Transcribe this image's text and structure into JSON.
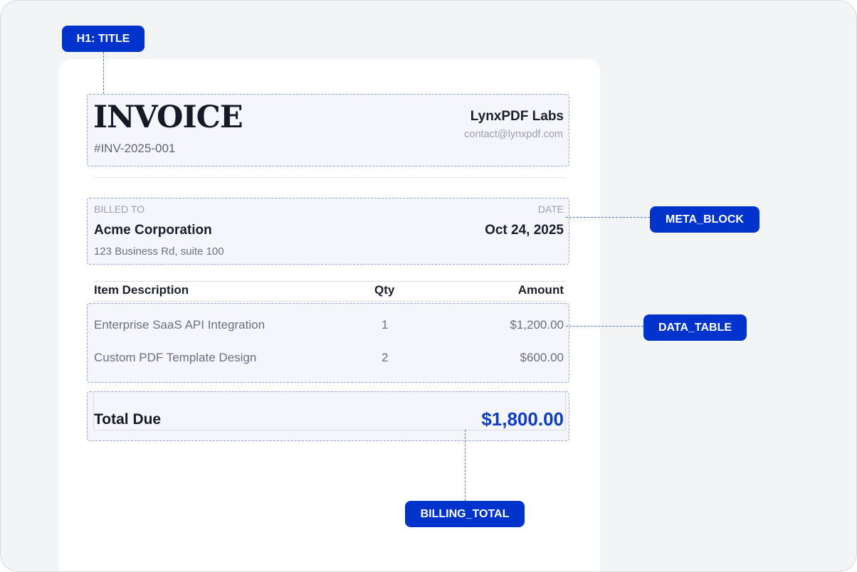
{
  "annotations": {
    "title_tag": "H1: TITLE",
    "meta_tag": "META_BLOCK",
    "table_tag": "DATA_TABLE",
    "total_tag": "BILLING_TOTAL"
  },
  "invoice": {
    "title": "INVOICE",
    "number": "#INV-2025-001",
    "company": {
      "name": "LynxPDF Labs",
      "email": "contact@lynxpdf.com"
    },
    "meta": {
      "billed_to_label": "BILLED TO",
      "date_label": "DATE",
      "client_name": "Acme Corporation",
      "client_address": "123 Business Rd, suite 100",
      "date": "Oct 24, 2025"
    },
    "table": {
      "headers": {
        "description": "Item Description",
        "qty": "Qty",
        "amount": "Amount"
      },
      "rows": [
        {
          "description": "Enterprise SaaS API Integration",
          "qty": "1",
          "amount": "$1,200.00"
        },
        {
          "description": "Custom PDF Template Design",
          "qty": "2",
          "amount": "$600.00"
        }
      ]
    },
    "total": {
      "label": "Total Due",
      "value": "$1,800.00"
    }
  },
  "colors": {
    "tag_background": "#0033cc",
    "zone_border": "#8ea5df",
    "total_value": "#0b3cc7"
  }
}
